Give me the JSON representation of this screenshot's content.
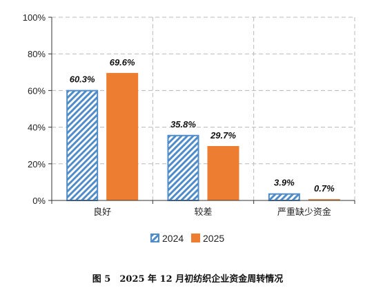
{
  "chart_data": {
    "type": "bar",
    "caption": "图 5　2025 年 12 月初纺织企业资金周转情况",
    "categories": [
      "良好",
      "较差",
      "严重缺少资金"
    ],
    "series": [
      {
        "name": "2024",
        "values": [
          60.3,
          35.8,
          3.9
        ],
        "labels": [
          "60.3%",
          "35.8%",
          "3.9%"
        ],
        "color": "#4f8cc9",
        "pattern": "diagonal-hatch"
      },
      {
        "name": "2025",
        "values": [
          69.6,
          29.7,
          0.7
        ],
        "labels": [
          "69.6%",
          "29.7%",
          "0.7%"
        ],
        "color": "#ed7d31",
        "pattern": "solid"
      }
    ],
    "ylim": [
      0,
      100
    ],
    "yticks": [
      0,
      20,
      40,
      60,
      80,
      100
    ],
    "ytick_labels": [
      "0%",
      "20%",
      "40%",
      "60%",
      "80%",
      "100%"
    ],
    "grid": "dashed",
    "legend": "bottom"
  }
}
